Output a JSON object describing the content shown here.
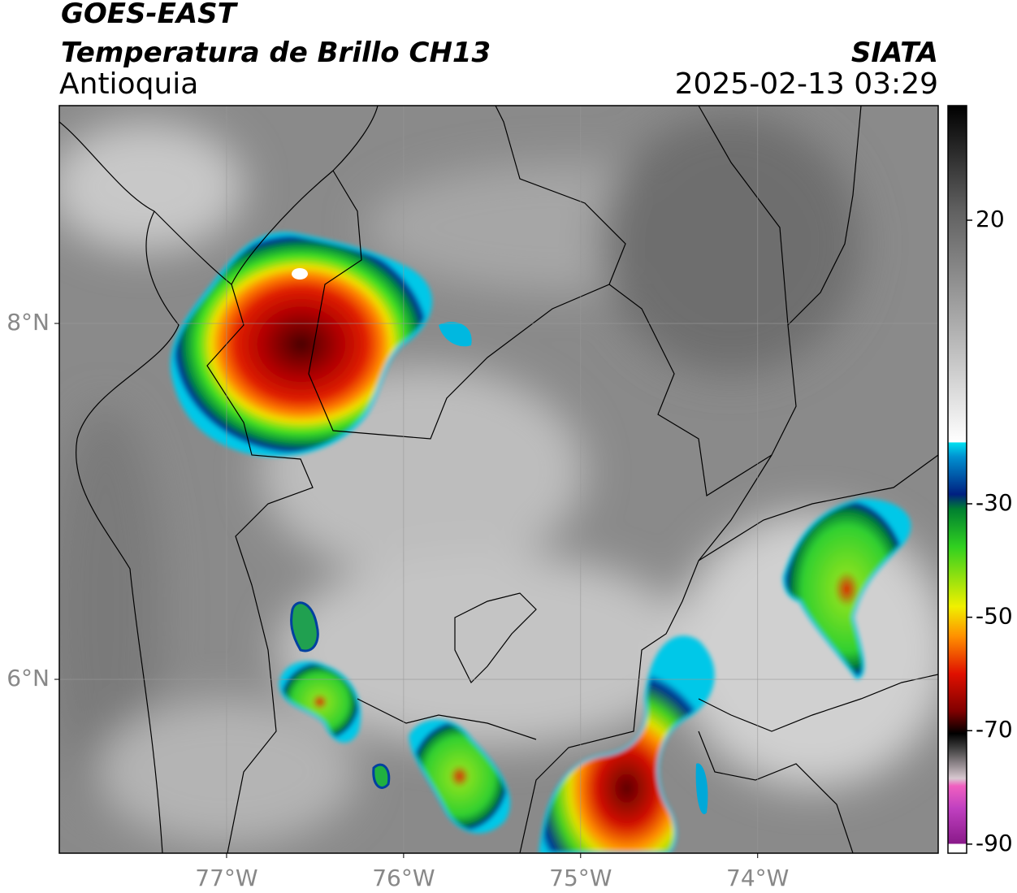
{
  "header": {
    "title": "GOES-EAST",
    "subtitle": "Temperatura de Brillo CH13",
    "region": "Antioquia",
    "source": "SIATA",
    "datetime": "2025-02-13 03:29"
  },
  "map": {
    "xlim": [
      -77.945,
      -72.98
    ],
    "ylim": [
      5.023,
      9.224
    ],
    "xticks": [
      {
        "value": -77,
        "label": "77°W"
      },
      {
        "value": -76,
        "label": "76°W"
      },
      {
        "value": -75,
        "label": "75°W"
      },
      {
        "value": -74,
        "label": "74°W"
      }
    ],
    "yticks": [
      {
        "value": 8,
        "label": "8°N"
      },
      {
        "value": 6,
        "label": "6°N"
      }
    ]
  },
  "colorbar": {
    "lim": [
      -91.6,
      40.2
    ],
    "ticks": [
      20,
      -30,
      -50,
      -70,
      -90
    ]
  }
}
